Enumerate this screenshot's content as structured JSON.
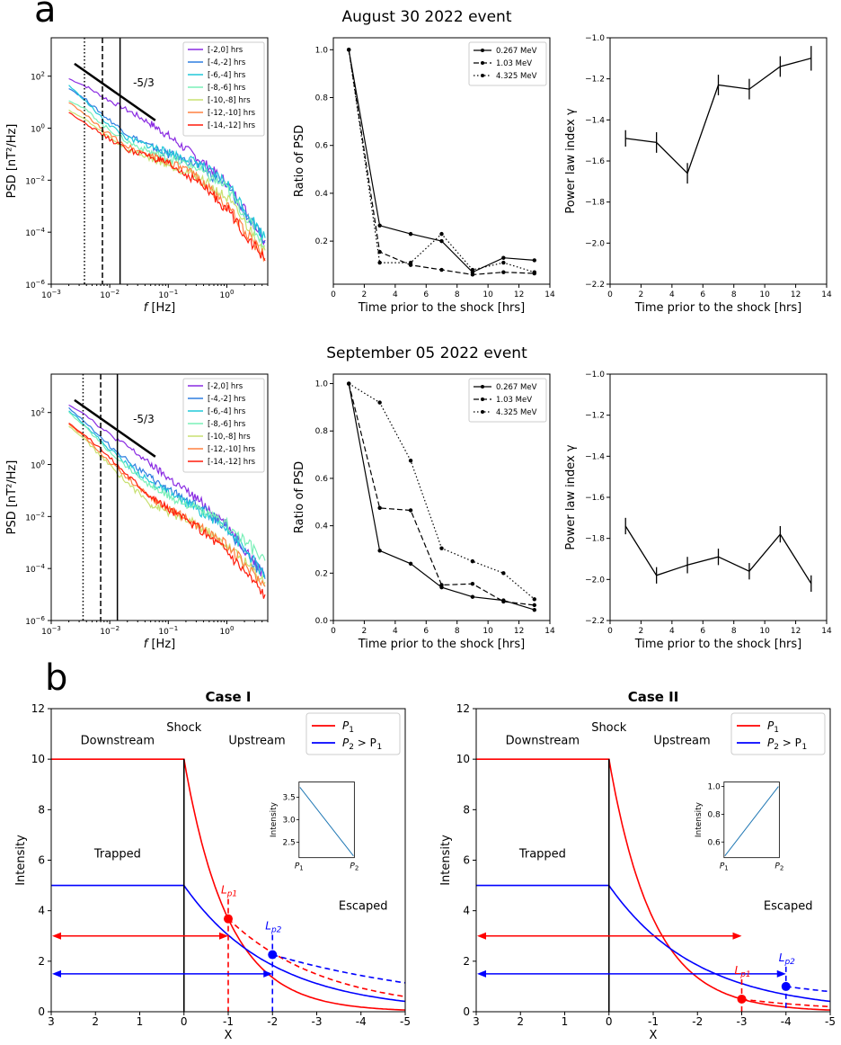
{
  "panel_labels": {
    "a": "a",
    "b": "b"
  },
  "event_titles": [
    "August 30 2022 event",
    "September 05 2022 event"
  ],
  "chart_data": [
    {
      "id": "aug-psd",
      "type": "line",
      "xscale": "log",
      "yscale": "log",
      "xlim": [
        0.001,
        5
      ],
      "ylim": [
        1e-06,
        3000
      ],
      "xlabel_f": "f",
      "xlabel_unit": " [Hz]",
      "ylabel": "PSD [nT²/Hz]",
      "xticks": [
        {
          "v": 0.001,
          "b": "10",
          "e": "−3"
        },
        {
          "v": 0.01,
          "b": "10",
          "e": "−2"
        },
        {
          "v": 0.1,
          "b": "10",
          "e": "−1"
        },
        {
          "v": 1,
          "b": "10",
          "e": "0"
        }
      ],
      "yticks": [
        {
          "v": 1e-06,
          "b": "10",
          "e": "−6"
        },
        {
          "v": 0.0001,
          "b": "10",
          "e": "−4"
        },
        {
          "v": 0.01,
          "b": "10",
          "e": "−2"
        },
        {
          "v": 1,
          "b": "10",
          "e": "0"
        },
        {
          "v": 100,
          "b": "10",
          "e": "2"
        }
      ],
      "vlines": [
        {
          "x": 0.0037,
          "style": "dotted"
        },
        {
          "x": 0.0075,
          "style": "dashed"
        },
        {
          "x": 0.015,
          "style": "solid"
        }
      ],
      "slope_line": {
        "x": [
          0.0025,
          0.06
        ],
        "y": [
          300,
          2.0
        ],
        "label": "-5/3"
      },
      "legend_pos": "top-right",
      "series": [
        {
          "name": "[-2,0] hrs",
          "color": "#8a2be2",
          "x": [
            0.002,
            0.004,
            0.008,
            0.02,
            0.05,
            0.1,
            0.3,
            1,
            4.5
          ],
          "y": [
            80,
            40,
            15,
            5,
            1.5,
            0.5,
            0.08,
            0.008,
            5e-05
          ]
        },
        {
          "name": "[-4,-2] hrs",
          "color": "#2f7fe0",
          "x": [
            0.002,
            0.004,
            0.008,
            0.02,
            0.05,
            0.1,
            0.3,
            1,
            4.5
          ],
          "y": [
            35,
            12,
            3,
            0.6,
            0.2,
            0.1,
            0.04,
            0.006,
            4e-05
          ]
        },
        {
          "name": "[-6,-4] hrs",
          "color": "#20c8d8",
          "x": [
            0.002,
            0.004,
            0.008,
            0.02,
            0.05,
            0.1,
            0.3,
            1,
            4.5
          ],
          "y": [
            45,
            10,
            2,
            0.4,
            0.2,
            0.12,
            0.05,
            0.008,
            6e-05
          ]
        },
        {
          "name": "[-8,-6] hrs",
          "color": "#7af0b8",
          "x": [
            0.002,
            0.004,
            0.008,
            0.02,
            0.05,
            0.1,
            0.3,
            1,
            4.5
          ],
          "y": [
            12,
            5,
            1.2,
            0.3,
            0.12,
            0.07,
            0.03,
            0.005,
            3e-05
          ]
        },
        {
          "name": "[-10,-8] hrs",
          "color": "#c8e070",
          "x": [
            0.002,
            0.004,
            0.008,
            0.02,
            0.05,
            0.1,
            0.3,
            1,
            4.5
          ],
          "y": [
            5,
            2,
            0.6,
            0.15,
            0.07,
            0.04,
            0.015,
            0.002,
            2e-05
          ]
        },
        {
          "name": "[-12,-10] hrs",
          "color": "#ff8040",
          "x": [
            0.002,
            0.004,
            0.008,
            0.02,
            0.05,
            0.1,
            0.3,
            1,
            4.5
          ],
          "y": [
            10,
            3,
            0.8,
            0.2,
            0.09,
            0.05,
            0.015,
            0.001,
            1e-05
          ]
        },
        {
          "name": "[-14,-12] hrs",
          "color": "#ff1c0c",
          "x": [
            0.002,
            0.004,
            0.008,
            0.02,
            0.05,
            0.1,
            0.3,
            1,
            4.5
          ],
          "y": [
            4,
            1.5,
            0.5,
            0.15,
            0.08,
            0.04,
            0.01,
            0.0008,
            8e-06
          ]
        }
      ]
    },
    {
      "id": "aug-ratio",
      "type": "line",
      "xlim": [
        0,
        14
      ],
      "ylim": [
        0.02,
        1.05
      ],
      "xlabel": "Time prior to the shock [hrs]",
      "ylabel": "Ratio of PSD",
      "xticks": [
        0,
        2,
        4,
        6,
        8,
        10,
        12,
        14
      ],
      "yticks": [
        0.2,
        0.4,
        0.6,
        0.8,
        1.0
      ],
      "ytick_labels": [
        "0.2",
        "0.4",
        "0.6",
        "0.8",
        "1.0"
      ],
      "legend_pos": "top-right",
      "x": [
        1,
        3,
        5,
        7,
        9,
        11,
        13
      ],
      "series": [
        {
          "name": "0.267 MeV",
          "style": "solid",
          "values": [
            1.0,
            0.265,
            0.23,
            0.2,
            0.07,
            0.13,
            0.12
          ]
        },
        {
          "name": "1.03 MeV",
          "style": "dashed",
          "values": [
            1.0,
            0.155,
            0.1,
            0.08,
            0.06,
            0.07,
            0.065
          ]
        },
        {
          "name": "4.325 MeV",
          "style": "dotted",
          "values": [
            1.0,
            0.11,
            0.11,
            0.23,
            0.08,
            0.11,
            0.07
          ]
        }
      ]
    },
    {
      "id": "aug-gamma",
      "type": "line",
      "xlim": [
        0,
        14
      ],
      "ylim": [
        -2.2,
        -1.0
      ],
      "xlabel": "Time prior to the shock [hrs]",
      "ylabel": "Power law index γ",
      "xticks": [
        0,
        2,
        4,
        6,
        8,
        10,
        12,
        14
      ],
      "yticks": [
        -2.2,
        -2.0,
        -1.8,
        -1.6,
        -1.4,
        -1.2,
        -1.0
      ],
      "ytick_labels": [
        "−2.2",
        "−2.0",
        "−1.8",
        "−1.6",
        "−1.4",
        "−1.2",
        "−1.0"
      ],
      "x": [
        1,
        3,
        5,
        7,
        9,
        11,
        13
      ],
      "values": [
        -1.49,
        -1.51,
        -1.66,
        -1.23,
        -1.25,
        -1.14,
        -1.1
      ],
      "errors": [
        0.04,
        0.05,
        0.05,
        0.05,
        0.05,
        0.05,
        0.06
      ]
    },
    {
      "id": "sep-psd",
      "type": "line",
      "xscale": "log",
      "yscale": "log",
      "xlim": [
        0.001,
        5
      ],
      "ylim": [
        1e-06,
        3000
      ],
      "xlabel_f": "f",
      "xlabel_unit": " [Hz]",
      "ylabel": "PSD [nT²/Hz]",
      "xticks": [
        {
          "v": 0.001,
          "b": "10",
          "e": "−3"
        },
        {
          "v": 0.01,
          "b": "10",
          "e": "−2"
        },
        {
          "v": 0.1,
          "b": "10",
          "e": "−1"
        },
        {
          "v": 1,
          "b": "10",
          "e": "0"
        }
      ],
      "yticks": [
        {
          "v": 1e-06,
          "b": "10",
          "e": "−6"
        },
        {
          "v": 0.0001,
          "b": "10",
          "e": "−4"
        },
        {
          "v": 0.01,
          "b": "10",
          "e": "−2"
        },
        {
          "v": 1,
          "b": "10",
          "e": "0"
        },
        {
          "v": 100,
          "b": "10",
          "e": "2"
        }
      ],
      "vlines": [
        {
          "x": 0.0035,
          "style": "dotted"
        },
        {
          "x": 0.007,
          "style": "dashed"
        },
        {
          "x": 0.0135,
          "style": "solid"
        }
      ],
      "slope_line": {
        "x": [
          0.0025,
          0.06
        ],
        "y": [
          300,
          2.0
        ],
        "label": "-5/3"
      },
      "legend_pos": "top-right",
      "series": [
        {
          "name": "[-2,0] hrs",
          "color": "#8a2be2",
          "x": [
            0.002,
            0.004,
            0.008,
            0.02,
            0.05,
            0.1,
            0.3,
            1,
            4.5
          ],
          "y": [
            200,
            80,
            20,
            5,
            1,
            0.3,
            0.05,
            0.005,
            5e-05
          ]
        },
        {
          "name": "[-4,-2] hrs",
          "color": "#2f7fe0",
          "x": [
            0.002,
            0.004,
            0.008,
            0.02,
            0.05,
            0.1,
            0.3,
            1,
            4.5
          ],
          "y": [
            150,
            40,
            8,
            1.5,
            0.3,
            0.1,
            0.03,
            0.004,
            4e-05
          ]
        },
        {
          "name": "[-6,-4] hrs",
          "color": "#20c8d8",
          "x": [
            0.002,
            0.004,
            0.008,
            0.02,
            0.05,
            0.1,
            0.3,
            1,
            4.5
          ],
          "y": [
            120,
            30,
            6,
            1,
            0.2,
            0.08,
            0.02,
            0.004,
            5e-05
          ]
        },
        {
          "name": "[-8,-6] hrs",
          "color": "#7af0b8",
          "x": [
            0.002,
            0.004,
            0.008,
            0.02,
            0.05,
            0.1,
            0.3,
            1,
            4.5
          ],
          "y": [
            100,
            25,
            5,
            0.8,
            0.15,
            0.06,
            0.02,
            0.005,
            0.0002
          ]
        },
        {
          "name": "[-10,-8] hrs",
          "color": "#c8e070",
          "x": [
            0.002,
            0.004,
            0.008,
            0.02,
            0.05,
            0.1,
            0.3,
            1,
            4.5
          ],
          "y": [
            30,
            8,
            1.5,
            0.2,
            0.03,
            0.015,
            0.005,
            0.0008,
            3e-05
          ]
        },
        {
          "name": "[-12,-10] hrs",
          "color": "#ff8040",
          "x": [
            0.002,
            0.004,
            0.008,
            0.02,
            0.05,
            0.1,
            0.3,
            1,
            4.5
          ],
          "y": [
            35,
            10,
            2,
            0.3,
            0.05,
            0.02,
            0.005,
            0.0008,
            2e-05
          ]
        },
        {
          "name": "[-14,-12] hrs",
          "color": "#ff1c0c",
          "x": [
            0.002,
            0.004,
            0.008,
            0.02,
            0.05,
            0.1,
            0.3,
            1,
            4.5
          ],
          "y": [
            40,
            12,
            3,
            0.4,
            0.06,
            0.02,
            0.004,
            0.0005,
            1e-05
          ]
        }
      ]
    },
    {
      "id": "sep-ratio",
      "type": "line",
      "xlim": [
        0,
        14
      ],
      "ylim": [
        0.0,
        1.04
      ],
      "xlabel": "Time prior to the shock [hrs]",
      "ylabel": "Ratio of PSD",
      "xticks": [
        0,
        2,
        4,
        6,
        8,
        10,
        12,
        14
      ],
      "yticks": [
        0.0,
        0.2,
        0.4,
        0.6,
        0.8,
        1.0
      ],
      "ytick_labels": [
        "0.0",
        "0.2",
        "0.4",
        "0.6",
        "0.8",
        "1.0"
      ],
      "legend_pos": "top-right",
      "x": [
        1,
        3,
        5,
        7,
        9,
        11,
        13
      ],
      "series": [
        {
          "name": "0.267 MeV",
          "style": "solid",
          "values": [
            1.0,
            0.295,
            0.24,
            0.14,
            0.1,
            0.085,
            0.045
          ]
        },
        {
          "name": "1.03 MeV",
          "style": "dashed",
          "values": [
            1.0,
            0.475,
            0.465,
            0.15,
            0.155,
            0.08,
            0.065
          ]
        },
        {
          "name": "4.325 MeV",
          "style": "dotted",
          "values": [
            1.0,
            0.92,
            0.675,
            0.305,
            0.25,
            0.2,
            0.09
          ]
        }
      ]
    },
    {
      "id": "sep-gamma",
      "type": "line",
      "xlim": [
        0,
        14
      ],
      "ylim": [
        -2.2,
        -1.0
      ],
      "xlabel": "Time prior to the shock [hrs]",
      "ylabel": "Power law index γ",
      "xticks": [
        0,
        2,
        4,
        6,
        8,
        10,
        12,
        14
      ],
      "yticks": [
        -2.2,
        -2.0,
        -1.8,
        -1.6,
        -1.4,
        -1.2,
        -1.0
      ],
      "ytick_labels": [
        "−2.2",
        "−2.0",
        "−1.8",
        "−1.6",
        "−1.4",
        "−1.2",
        "−1.0"
      ],
      "x": [
        1,
        3,
        5,
        7,
        9,
        11,
        13
      ],
      "values": [
        -1.74,
        -1.98,
        -1.93,
        -1.89,
        -1.96,
        -1.78,
        -2.02
      ],
      "errors": [
        0.04,
        0.04,
        0.04,
        0.04,
        0.04,
        0.04,
        0.04
      ]
    },
    {
      "id": "case1",
      "type": "line",
      "title": "Case I",
      "xlim": [
        3,
        -5
      ],
      "ylim": [
        0,
        12
      ],
      "xlabel": "X",
      "ylabel": "Intensity",
      "xticks": [
        3,
        2,
        1,
        0,
        -1,
        -2,
        -3,
        -4,
        -5
      ],
      "xtick_labels": [
        "3",
        "2",
        "1",
        "0",
        "-1",
        "-2",
        "-3",
        "-4",
        "-5"
      ],
      "yticks": [
        0,
        2,
        4,
        6,
        8,
        10,
        12
      ],
      "shock_x": 0,
      "labels": {
        "shock": "Shock",
        "downstream": "Downstream",
        "upstream": "Upstream",
        "trapped": "Trapped",
        "escaped": "Escaped"
      },
      "legend": [
        {
          "name_main": "P",
          "name_sub": "1",
          "name_rest": "",
          "color": "#ff0000"
        },
        {
          "name_main": "P",
          "name_sub": "2",
          "name_rest": " > P",
          "name_sub2": "1",
          "color": "#0000ff"
        }
      ],
      "red_curve": {
        "level": 10,
        "scale": 1.0
      },
      "blue_curve": {
        "level": 5,
        "scale": 2.0
      },
      "red_marker": {
        "x": -1.0,
        "y": 3.68,
        "label_main": "L",
        "label_sub": "p1"
      },
      "blue_marker": {
        "x": -2.0,
        "y": 2.26,
        "label_main": "L",
        "label_sub": "p2"
      },
      "red_arrow_y": 3,
      "blue_arrow_y": 1.5,
      "inset": {
        "xticks": [
          "P",
          "P"
        ],
        "xsubs": [
          "1",
          "2"
        ],
        "ylabel": "Intensity",
        "yticks": [
          "2.5",
          "3.0",
          "3.5"
        ],
        "ylim": [
          2.2,
          3.8
        ],
        "y": [
          3.72,
          2.2
        ]
      }
    },
    {
      "id": "case2",
      "type": "line",
      "title": "Case II",
      "xlim": [
        3,
        -5
      ],
      "ylim": [
        0,
        12
      ],
      "xlabel": "X",
      "ylabel": "Intensity",
      "xticks": [
        3,
        2,
        1,
        0,
        -1,
        -2,
        -3,
        -4,
        -5
      ],
      "xtick_labels": [
        "3",
        "2",
        "1",
        "0",
        "-1",
        "-2",
        "-3",
        "-4",
        "-5"
      ],
      "yticks": [
        0,
        2,
        4,
        6,
        8,
        10,
        12
      ],
      "shock_x": 0,
      "labels": {
        "shock": "Shock",
        "downstream": "Downstream",
        "upstream": "Upstream",
        "trapped": "Trapped",
        "escaped": "Escaped"
      },
      "legend": [
        {
          "name_main": "P",
          "name_sub": "1",
          "name_rest": "",
          "color": "#ff0000"
        },
        {
          "name_main": "P",
          "name_sub": "2",
          "name_rest": " > P",
          "name_sub2": "1",
          "color": "#0000ff"
        }
      ],
      "red_curve": {
        "level": 10,
        "scale": 1.0
      },
      "blue_curve": {
        "level": 5,
        "scale": 2.0
      },
      "red_marker": {
        "x": -3.0,
        "y": 0.5,
        "label_main": "L",
        "label_sub": "p1"
      },
      "blue_marker": {
        "x": -4.0,
        "y": 1.0,
        "label_main": "L",
        "label_sub": "p2"
      },
      "red_arrow_y": 3,
      "blue_arrow_y": 1.5,
      "inset": {
        "xticks": [
          "P",
          "P"
        ],
        "xsubs": [
          "1",
          "2"
        ],
        "ylabel": "Intensity",
        "yticks": [
          "0.6",
          "0.8",
          "1.0"
        ],
        "ylim": [
          0.5,
          1.02
        ],
        "y": [
          0.5,
          1.0
        ]
      }
    }
  ]
}
